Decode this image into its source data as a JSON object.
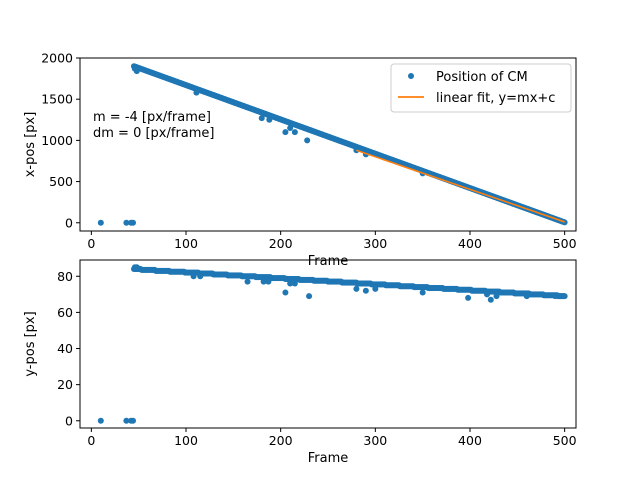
{
  "chart_data": [
    {
      "type": "scatter",
      "title": "",
      "xlabel": "Frame",
      "ylabel": "x-pos [px]",
      "xlim": [
        -12,
        512
      ],
      "ylim": [
        -100,
        2000
      ],
      "xticks": [
        0,
        100,
        200,
        300,
        400,
        500
      ],
      "yticks": [
        0,
        500,
        1000,
        1500,
        2000
      ],
      "grid": false,
      "legend_position": "top-right",
      "annotation": [
        "m = -4 [px/frame]",
        " dm = 0 [px/frame]"
      ],
      "series": [
        {
          "name": "Position of CM",
          "kind": "points",
          "color": "#1f77b4",
          "trend": {
            "x_start": 45,
            "x_end": 500,
            "y_start": 1900,
            "y_end": 5
          },
          "points": [
            [
              10,
              0
            ],
            [
              37,
              0
            ],
            [
              42,
              0
            ],
            [
              44,
              0
            ],
            [
              46,
              1870
            ],
            [
              48,
              1840
            ],
            [
              111,
              1580
            ],
            [
              180,
              1270
            ],
            [
              188,
              1250
            ],
            [
              205,
              1100
            ],
            [
              210,
              1150
            ],
            [
              215,
              1100
            ],
            [
              228,
              1000
            ],
            [
              280,
              880
            ],
            [
              290,
              830
            ],
            [
              350,
              600
            ]
          ]
        },
        {
          "name": "linear fit, y=mx+c",
          "kind": "line",
          "color": "#ff7f0e",
          "points": [
            [
              280,
              880
            ],
            [
              500,
              10
            ]
          ]
        }
      ]
    },
    {
      "type": "scatter",
      "title": "",
      "xlabel": "Frame",
      "ylabel": "y-pos  [px]",
      "xlim": [
        -12,
        512
      ],
      "ylim": [
        -4,
        89
      ],
      "xticks": [
        0,
        100,
        200,
        300,
        400,
        500
      ],
      "yticks": [
        0,
        20,
        40,
        60,
        80
      ],
      "grid": false,
      "series": [
        {
          "name": "",
          "kind": "points",
          "color": "#1f77b4",
          "trend": {
            "x_start": 45,
            "x_end": 500,
            "y_start": 84,
            "y_end": 69
          },
          "points": [
            [
              10,
              0
            ],
            [
              37,
              0
            ],
            [
              42,
              0
            ],
            [
              44,
              0
            ],
            [
              46,
              85
            ],
            [
              48,
              85
            ],
            [
              108,
              80
            ],
            [
              115,
              80
            ],
            [
              165,
              77
            ],
            [
              182,
              77
            ],
            [
              187,
              77
            ],
            [
              205,
              71
            ],
            [
              210,
              76
            ],
            [
              215,
              76
            ],
            [
              230,
              69
            ],
            [
              280,
              73
            ],
            [
              290,
              72
            ],
            [
              300,
              73
            ],
            [
              350,
              71
            ],
            [
              398,
              68
            ],
            [
              418,
              70
            ],
            [
              422,
              67
            ],
            [
              428,
              69
            ],
            [
              460,
              69
            ],
            [
              490,
              69
            ],
            [
              495,
              69
            ]
          ]
        }
      ]
    }
  ]
}
